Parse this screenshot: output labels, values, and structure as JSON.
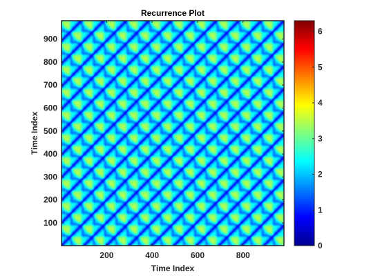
{
  "chart_data": {
    "type": "heatmap",
    "title": "Recurrence Plot",
    "xlabel": "Time Index",
    "ylabel": "Time Index",
    "x_range": [
      1,
      980
    ],
    "y_range": [
      1,
      980
    ],
    "x_ticks": [
      200,
      400,
      600,
      800
    ],
    "y_ticks": [
      100,
      200,
      300,
      400,
      500,
      600,
      700,
      800,
      900
    ],
    "period": 99,
    "colormap": "jet",
    "colorbar": {
      "range": [
        0,
        6.3
      ],
      "ticks": [
        0,
        1,
        2,
        3,
        4,
        5,
        6
      ]
    },
    "grid": false
  }
}
